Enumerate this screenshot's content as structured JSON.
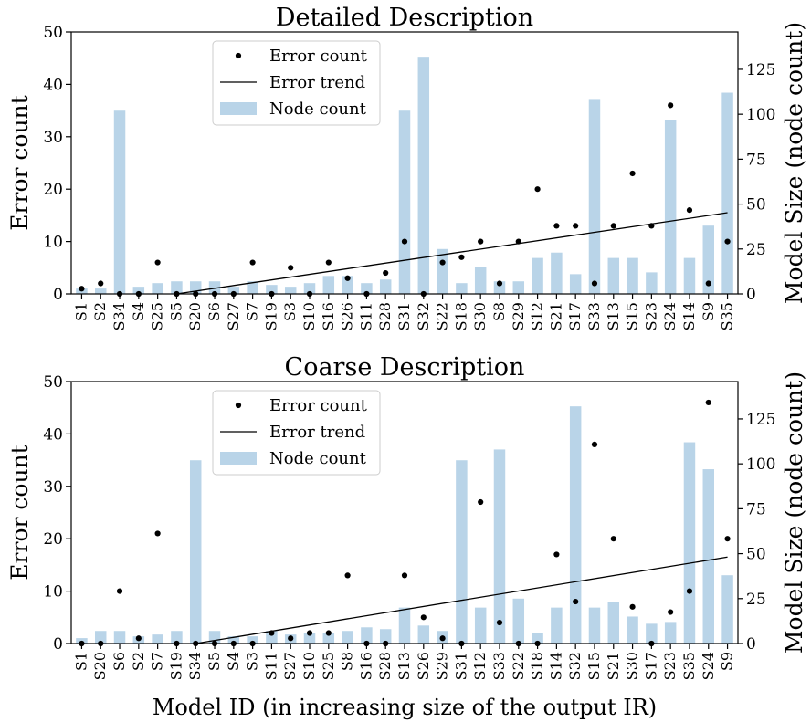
{
  "chart_data": [
    {
      "type": "bar+scatter+line",
      "title": "Detailed Description",
      "ylabel_left": "Error count",
      "ylabel_right": "Model Size (node count)",
      "xlabel": "",
      "ylim_left": [
        0,
        50
      ],
      "ylim_right": [
        0,
        145.8
      ],
      "yticks_left": [
        "0",
        "10",
        "20",
        "30",
        "40",
        "50"
      ],
      "yticks_right": [
        "0",
        "25",
        "50",
        "75",
        "100",
        "125"
      ],
      "legend": [
        "Error count",
        "Error trend",
        "Node count"
      ],
      "legend_placement": "top-left",
      "categories": [
        "S1",
        "S2",
        "S34",
        "S4",
        "S25",
        "S5",
        "S20",
        "S6",
        "S27",
        "S7",
        "S19",
        "S3",
        "S10",
        "S16",
        "S26",
        "S11",
        "S28",
        "S31",
        "S32",
        "S22",
        "S18",
        "S30",
        "S8",
        "S29",
        "S12",
        "S21",
        "S17",
        "S33",
        "S13",
        "S15",
        "S23",
        "S24",
        "S14",
        "S9",
        "S35"
      ],
      "node_count": [
        3,
        3,
        102,
        4,
        6,
        7,
        7,
        7,
        4,
        7,
        5,
        4,
        6,
        10,
        10,
        6,
        8,
        102,
        132,
        25,
        6,
        15,
        7,
        7,
        20,
        23,
        11,
        108,
        20,
        20,
        12,
        97,
        20,
        38,
        112
      ],
      "error_count": [
        1,
        2,
        0,
        0,
        6,
        0,
        0,
        0,
        0,
        6,
        0,
        5,
        0,
        6,
        3,
        0,
        4,
        10,
        0,
        6,
        7,
        10,
        2,
        10,
        20,
        13,
        13,
        2,
        13,
        23,
        13,
        36,
        16,
        2,
        10
      ],
      "trend": {
        "x_start_index": 5,
        "y_start": 0,
        "x_end_index": 34,
        "y_end": 15.5
      }
    },
    {
      "type": "bar+scatter+line",
      "title": "Coarse Description",
      "ylabel_left": "Error count",
      "ylabel_right": "Model Size (node count)",
      "xlabel": "Model ID (in increasing size of the output IR)",
      "ylim_left": [
        0,
        50
      ],
      "ylim_right": [
        0,
        145.8
      ],
      "yticks_left": [
        "0",
        "10",
        "20",
        "30",
        "40",
        "50"
      ],
      "yticks_right": [
        "0",
        "25",
        "50",
        "75",
        "100",
        "125"
      ],
      "legend": [
        "Error count",
        "Error trend",
        "Node count"
      ],
      "legend_placement": "top-left",
      "categories": [
        "S1",
        "S20",
        "S6",
        "S2",
        "S7",
        "S19",
        "S34",
        "S5",
        "S4",
        "S3",
        "S11",
        "S27",
        "S10",
        "S25",
        "S8",
        "S16",
        "S28",
        "S13",
        "S26",
        "S29",
        "S31",
        "S12",
        "S33",
        "S22",
        "S18",
        "S14",
        "S32",
        "S15",
        "S21",
        "S30",
        "S17",
        "S23",
        "S35",
        "S24",
        "S9"
      ],
      "node_count": [
        3,
        7,
        7,
        4,
        5,
        7,
        102,
        7,
        4,
        4,
        7,
        5,
        6,
        6,
        7,
        9,
        8,
        20,
        10,
        7,
        102,
        20,
        108,
        25,
        6,
        20,
        132,
        20,
        23,
        15,
        11,
        12,
        112,
        97,
        38
      ],
      "error_count": [
        0,
        0,
        10,
        1,
        21,
        0,
        0,
        0,
        0,
        0,
        2,
        1,
        2,
        2,
        13,
        0,
        0,
        13,
        5,
        1,
        0,
        27,
        4,
        0,
        0,
        17,
        8,
        38,
        20,
        7,
        0,
        6,
        10,
        46,
        20
      ],
      "trend": {
        "x_start_index": 6,
        "y_start": 0,
        "x_end_index": 34,
        "y_end": 16.5
      }
    }
  ]
}
